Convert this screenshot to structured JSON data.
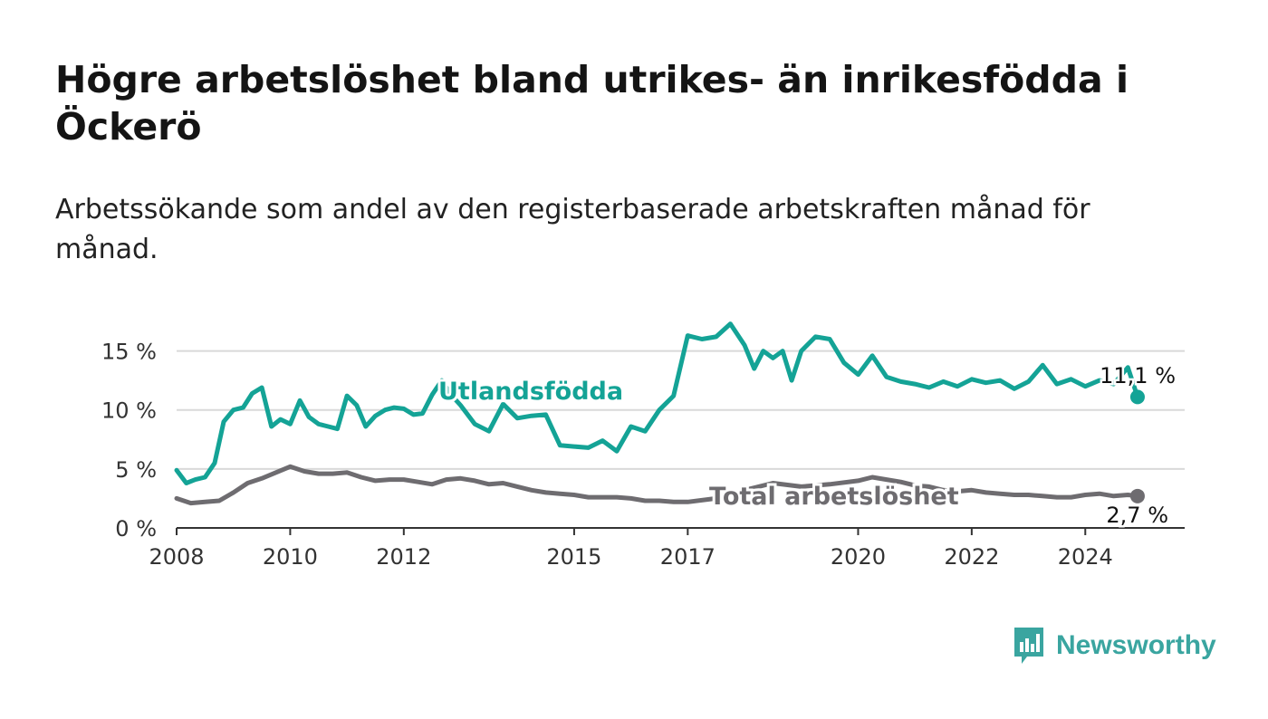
{
  "title": "Högre arbetslöshet bland utrikes- än inrikesfödda i Öckerö",
  "subtitle": "Arbetssökande som andel av den registerbaserade arbetskraften månad för månad.",
  "brand": {
    "name": "Newsworthy",
    "color": "#3aa5a0",
    "icon": "bar-chart-speech-bubble-icon"
  },
  "chart_data": {
    "type": "line",
    "xlabel": "",
    "ylabel": "",
    "xlim": [
      2008,
      2025.75
    ],
    "ylim": [
      0,
      17.5
    ],
    "x_ticks": [
      2008,
      2010,
      2012,
      2015,
      2017,
      2020,
      2022,
      2024
    ],
    "y_ticks": [
      {
        "value": 0,
        "label": "0 %"
      },
      {
        "value": 5,
        "label": "5 %"
      },
      {
        "value": 10,
        "label": "10 %"
      },
      {
        "value": 15,
        "label": "15 %"
      }
    ],
    "grid": true,
    "series": [
      {
        "name": "Utlandsfödda",
        "color": "#14a396",
        "end_label": "11,1 %",
        "x": [
          2008.0,
          2008.17,
          2008.33,
          2008.5,
          2008.67,
          2008.83,
          2009.0,
          2009.17,
          2009.33,
          2009.5,
          2009.67,
          2009.83,
          2010.0,
          2010.17,
          2010.33,
          2010.5,
          2010.67,
          2010.83,
          2011.0,
          2011.17,
          2011.33,
          2011.5,
          2011.67,
          2011.83,
          2012.0,
          2012.17,
          2012.33,
          2012.5,
          2012.67,
          2012.83,
          2013.0,
          2013.25,
          2013.5,
          2013.75,
          2014.0,
          2014.25,
          2014.5,
          2014.75,
          2015.0,
          2015.25,
          2015.5,
          2015.75,
          2016.0,
          2016.25,
          2016.5,
          2016.75,
          2017.0,
          2017.25,
          2017.5,
          2017.75,
          2018.0,
          2018.17,
          2018.33,
          2018.5,
          2018.67,
          2018.83,
          2019.0,
          2019.25,
          2019.5,
          2019.75,
          2020.0,
          2020.25,
          2020.5,
          2020.75,
          2021.0,
          2021.25,
          2021.5,
          2021.75,
          2022.0,
          2022.25,
          2022.5,
          2022.75,
          2023.0,
          2023.25,
          2023.5,
          2023.75,
          2024.0,
          2024.25,
          2024.5,
          2024.75,
          2024.92
        ],
        "y": [
          4.9,
          3.8,
          4.1,
          4.3,
          5.5,
          9.0,
          10.0,
          10.2,
          11.4,
          11.9,
          8.6,
          9.2,
          8.8,
          10.8,
          9.4,
          8.8,
          8.6,
          8.4,
          11.2,
          10.4,
          8.6,
          9.5,
          10.0,
          10.2,
          10.1,
          9.6,
          9.7,
          11.3,
          12.5,
          11.3,
          10.4,
          8.8,
          8.2,
          10.5,
          9.3,
          9.5,
          9.6,
          7.0,
          6.9,
          6.8,
          7.4,
          6.5,
          8.6,
          8.2,
          10.0,
          11.2,
          16.3,
          16.0,
          16.2,
          17.3,
          15.5,
          13.5,
          15.0,
          14.4,
          15.0,
          12.5,
          15.0,
          16.2,
          16.0,
          14.0,
          13.0,
          14.6,
          12.8,
          12.4,
          12.2,
          11.9,
          12.4,
          12.0,
          12.6,
          12.3,
          12.5,
          11.8,
          12.4,
          13.8,
          12.2,
          12.6,
          12.0,
          12.5,
          12.2,
          13.6,
          11.1
        ]
      },
      {
        "name": "Total arbetslöshet",
        "color": "#6e6c70",
        "end_label": "2,7 %",
        "x": [
          2008.0,
          2008.25,
          2008.5,
          2008.75,
          2009.0,
          2009.25,
          2009.5,
          2009.75,
          2010.0,
          2010.25,
          2010.5,
          2010.75,
          2011.0,
          2011.25,
          2011.5,
          2011.75,
          2012.0,
          2012.25,
          2012.5,
          2012.75,
          2013.0,
          2013.25,
          2013.5,
          2013.75,
          2014.0,
          2014.25,
          2014.5,
          2014.75,
          2015.0,
          2015.25,
          2015.5,
          2015.75,
          2016.0,
          2016.25,
          2016.5,
          2016.75,
          2017.0,
          2017.5,
          2018.0,
          2018.5,
          2019.0,
          2019.5,
          2020.0,
          2020.25,
          2020.5,
          2020.75,
          2021.0,
          2021.25,
          2021.5,
          2021.75,
          2022.0,
          2022.25,
          2022.5,
          2022.75,
          2023.0,
          2023.25,
          2023.5,
          2023.75,
          2024.0,
          2024.25,
          2024.5,
          2024.75,
          2024.92
        ],
        "y": [
          2.5,
          2.1,
          2.2,
          2.3,
          3.0,
          3.8,
          4.2,
          4.7,
          5.2,
          4.8,
          4.6,
          4.6,
          4.7,
          4.3,
          4.0,
          4.1,
          4.1,
          3.9,
          3.7,
          4.1,
          4.2,
          4.0,
          3.7,
          3.8,
          3.5,
          3.2,
          3.0,
          2.9,
          2.8,
          2.6,
          2.6,
          2.6,
          2.5,
          2.3,
          2.3,
          2.2,
          2.2,
          2.5,
          3.2,
          3.8,
          3.5,
          3.7,
          4.0,
          4.3,
          4.1,
          3.9,
          3.6,
          3.5,
          3.2,
          3.1,
          3.2,
          3.0,
          2.9,
          2.8,
          2.8,
          2.7,
          2.6,
          2.6,
          2.8,
          2.9,
          2.7,
          2.8,
          2.7
        ]
      }
    ]
  }
}
